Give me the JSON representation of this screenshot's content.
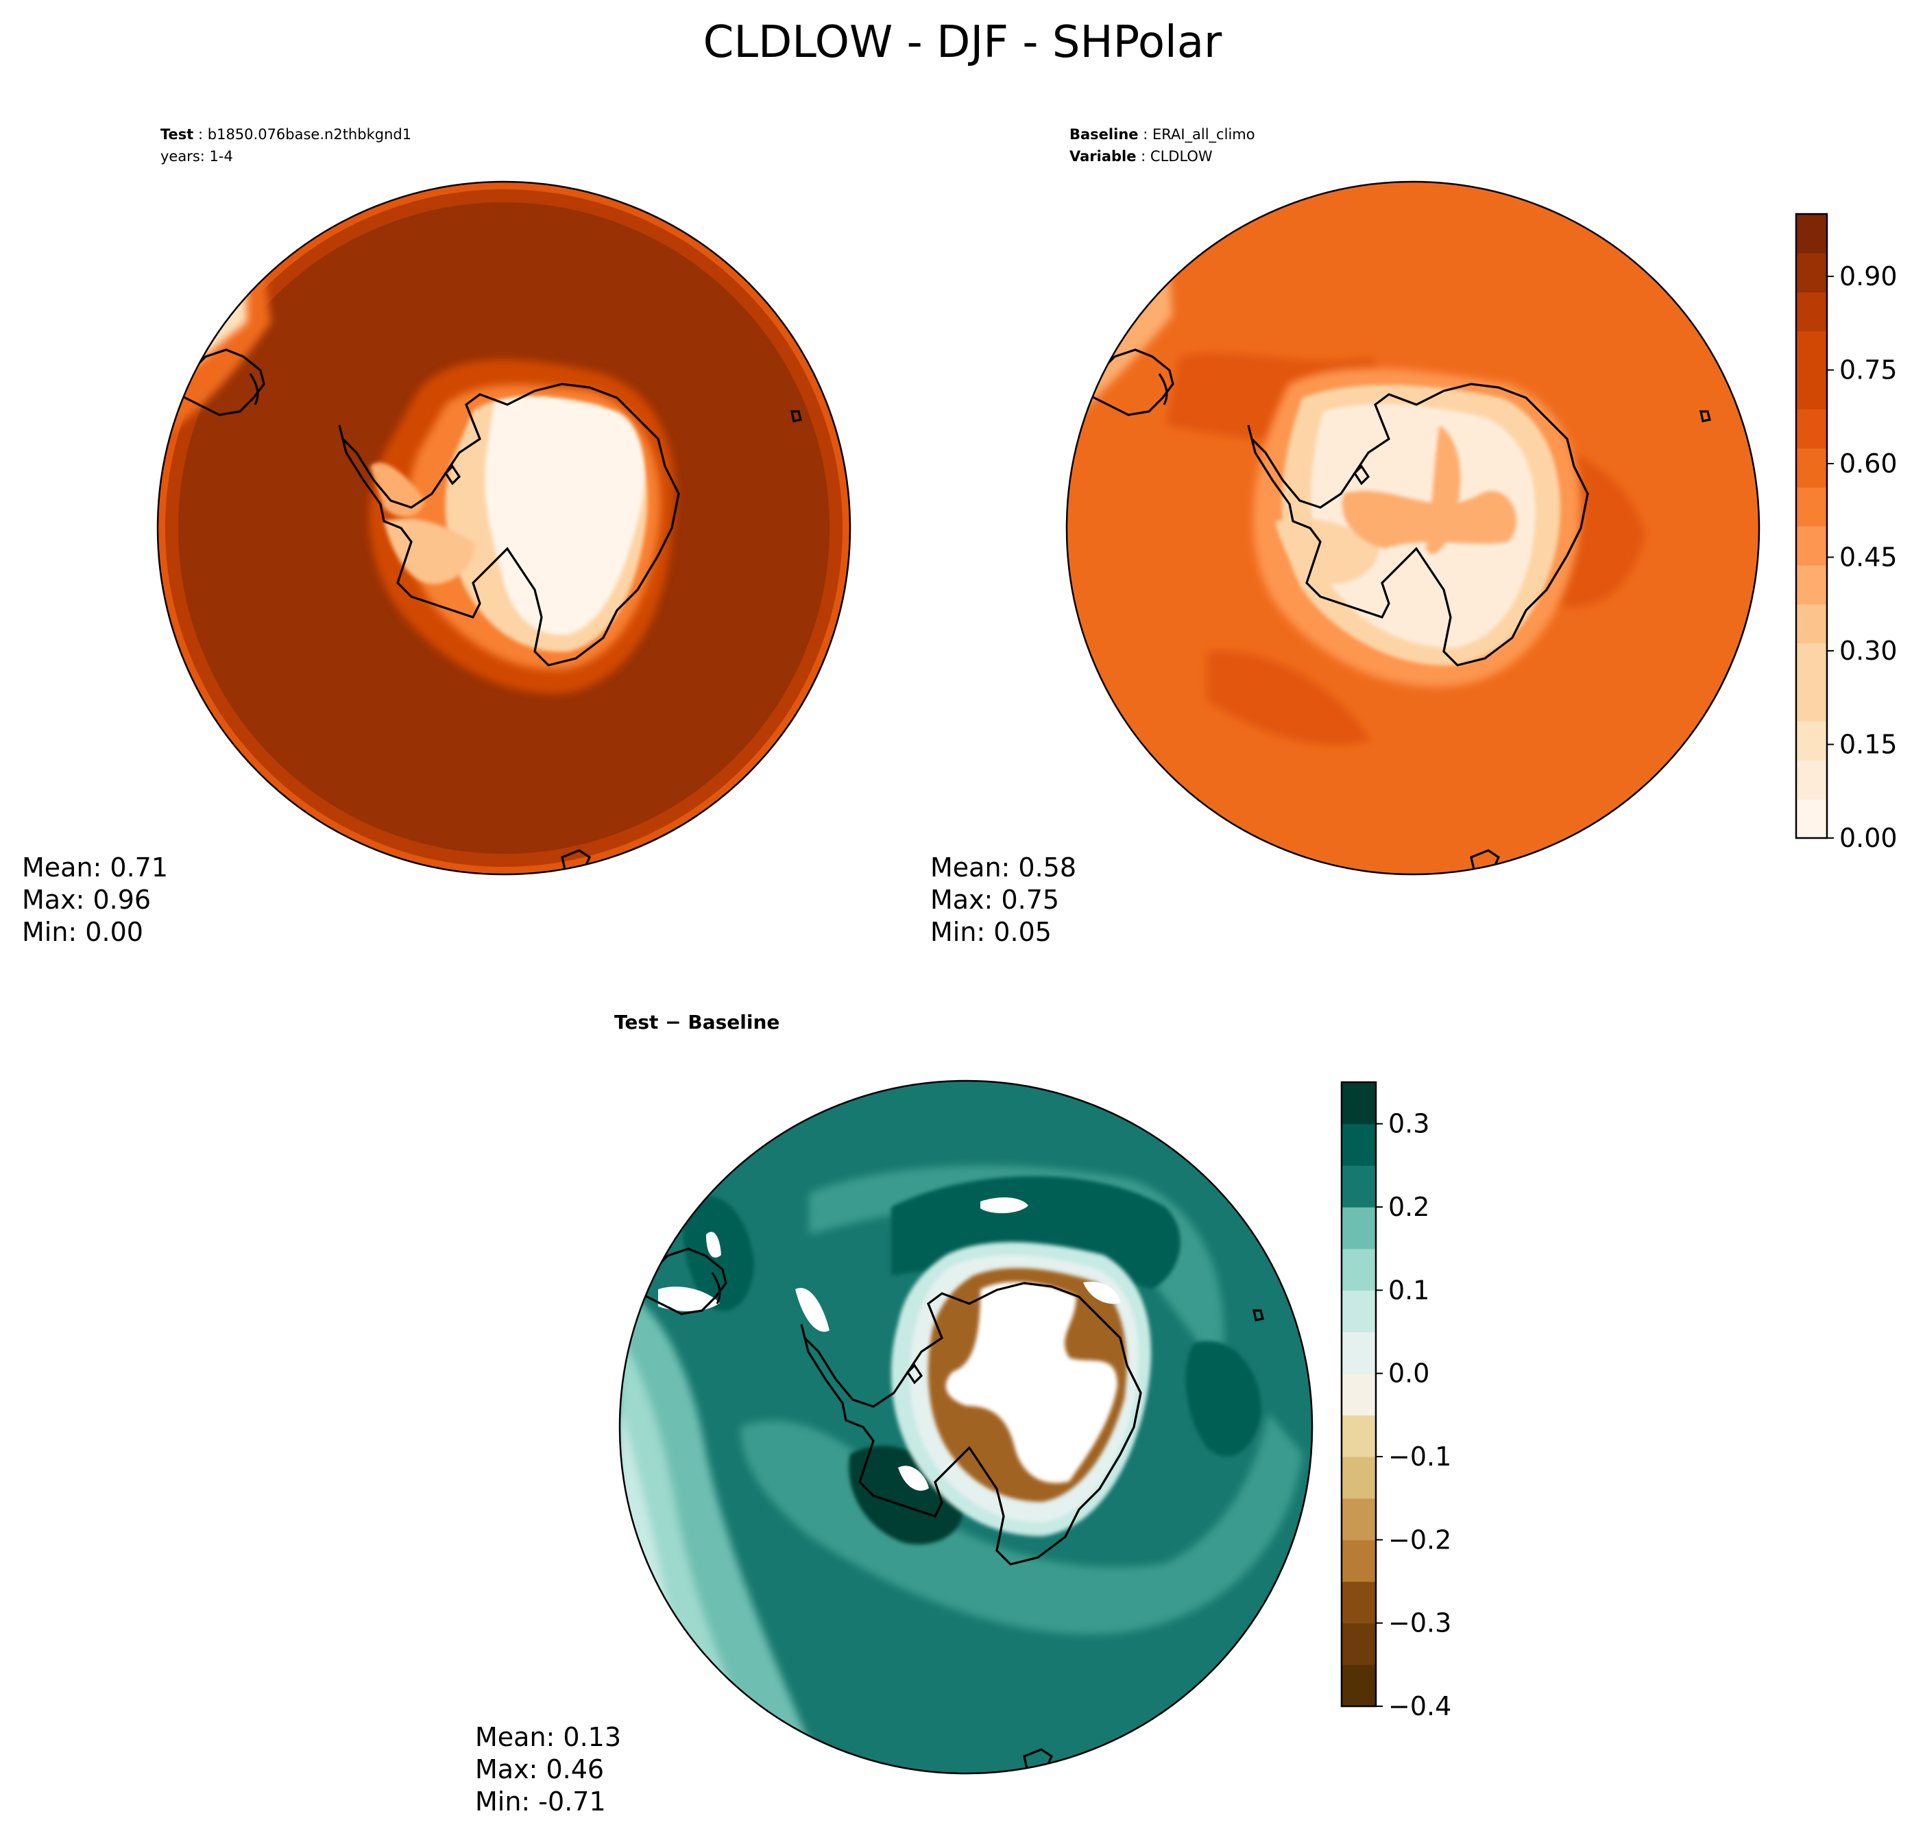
{
  "figure": {
    "title": "CLDLOW - DJF - SHPolar"
  },
  "test_panel": {
    "label_test": "Test",
    "test_name": "b1850.076base.n2thbkgnd1",
    "years": "years: 1-4",
    "stats": {
      "mean": "Mean:  0.71",
      "max": "Max:  0.96",
      "min": "Min:  0.00"
    }
  },
  "baseline_panel": {
    "label_baseline": "Baseline",
    "baseline_name": "ERAI_all_climo",
    "label_variable": "Variable",
    "variable_name": "CLDLOW",
    "stats": {
      "mean": "Mean:  0.58",
      "max": "Max:  0.75",
      "min": "Min:  0.05"
    }
  },
  "diff_panel": {
    "title": "Test − Baseline",
    "stats": {
      "mean": "Mean:  0.13",
      "max": "Max:  0.46",
      "min": "Min: -0.71"
    }
  },
  "colors": {
    "orange_ramp": [
      "#fff5eb",
      "#feecd9",
      "#fee3c1",
      "#fdd4a6",
      "#fdc38d",
      "#fdad6e",
      "#fd9650",
      "#f88033",
      "#ef6b1c",
      "#e2570d",
      "#d14804",
      "#b83c03",
      "#983103",
      "#7f2704"
    ],
    "bg_ramp": [
      "#543005",
      "#6d3c0a",
      "#874c12",
      "#a16321",
      "#b87c34",
      "#c99852",
      "#dbbd7a",
      "#ebd6a0",
      "#f5e8c6",
      "#f5f1e6",
      "#e4f1ef",
      "#c7eae4",
      "#9dd9cd",
      "#6ebfb1",
      "#3b9b8e",
      "#17786f",
      "#015e54",
      "#003c30"
    ],
    "coastline": "#000000"
  },
  "chart_data": [
    {
      "type": "heatmap",
      "name": "test",
      "projection": "south polar stereographic",
      "stats": {
        "mean": 0.71,
        "max": 0.96,
        "min": 0.0
      },
      "colorbar": {
        "levels_min": 0.0,
        "levels_max": 1.0,
        "levels_step": 0.0625,
        "ticks": [
          "0.00",
          "0.15",
          "0.30",
          "0.45",
          "0.60",
          "0.75",
          "0.90"
        ],
        "tick_values": [
          0.0,
          0.15,
          0.3,
          0.45,
          0.6,
          0.75,
          0.9
        ]
      },
      "pattern": {
        "ocean_value": 0.9,
        "ring_value": 0.78,
        "continent_interior_value": 0.0
      }
    },
    {
      "type": "heatmap",
      "name": "baseline",
      "projection": "south polar stereographic",
      "stats": {
        "mean": 0.58,
        "max": 0.75,
        "min": 0.05
      },
      "colorbar": {
        "levels_min": 0.0,
        "levels_max": 1.0,
        "levels_step": 0.0625,
        "ticks": [
          "0.00",
          "0.15",
          "0.30",
          "0.45",
          "0.60",
          "0.75",
          "0.90"
        ],
        "tick_values": [
          0.0,
          0.15,
          0.3,
          0.45,
          0.6,
          0.75,
          0.9
        ]
      },
      "pattern": {
        "ocean_value": 0.68,
        "ring_value": 0.62,
        "continent_interior_value": 0.15
      }
    },
    {
      "type": "heatmap",
      "name": "difference",
      "projection": "south polar stereographic",
      "stats": {
        "mean": 0.13,
        "max": 0.46,
        "min": -0.71
      },
      "colorbar": {
        "levels_min": -0.4,
        "levels_max": 0.35,
        "levels_step": 0.05,
        "ticks": [
          "0.3",
          "0.2",
          "0.1",
          "0.0",
          "−0.1",
          "−0.2",
          "−0.3",
          "−0.4"
        ],
        "tick_values": [
          0.3,
          0.2,
          0.1,
          0.0,
          -0.1,
          -0.2,
          -0.3,
          -0.4
        ]
      }
    }
  ]
}
